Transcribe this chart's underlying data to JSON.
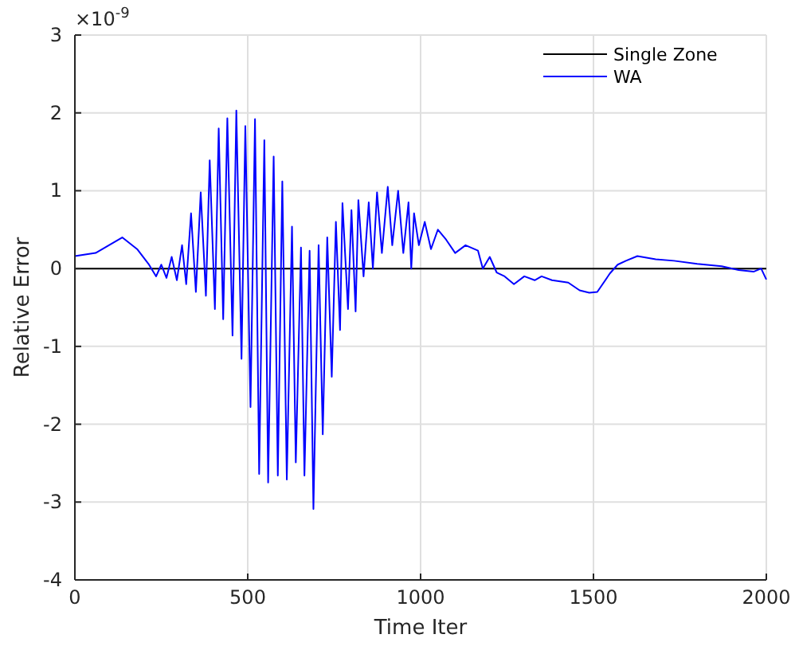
{
  "chart_data": {
    "type": "line",
    "xlabel": "Time Iter",
    "ylabel": "Relative Error",
    "annotations": [
      "×10$^{-9}$"
    ],
    "xlim": [
      0,
      2000
    ],
    "xticks": [
      0,
      500,
      1000,
      1500,
      2000
    ],
    "ylim": [
      -4,
      3
    ],
    "yticks": [
      -4,
      -3,
      -2,
      -1,
      0,
      1,
      2,
      3
    ],
    "grid": true,
    "legend": "top right",
    "line_style": "solid",
    "marker": "none",
    "series": [
      {
        "name": "Single Zone",
        "color": "#000000",
        "x": [
          0,
          2000
        ],
        "values": [
          0,
          0
        ]
      },
      {
        "name": "WA",
        "color": "#0000ff",
        "x": [
          0,
          60,
          137,
          180,
          213,
          235,
          250,
          265,
          280,
          295,
          310,
          322,
          336,
          350,
          364,
          379,
          390,
          405,
          416,
          429,
          441,
          456,
          467,
          482,
          493,
          508,
          521,
          533,
          548,
          559,
          575,
          587,
          600,
          613,
          628,
          639,
          654,
          664,
          679,
          690,
          705,
          717,
          730,
          743,
          755,
          767,
          774,
          790,
          800,
          812,
          820,
          835,
          850,
          862,
          874,
          888,
          905,
          918,
          935,
          950,
          965,
          973,
          981,
          995,
          1012,
          1030,
          1050,
          1074,
          1100,
          1130,
          1166,
          1180,
          1200,
          1220,
          1243,
          1270,
          1300,
          1330,
          1350,
          1380,
          1427,
          1460,
          1488,
          1511,
          1548,
          1570,
          1594,
          1627,
          1680,
          1733,
          1800,
          1871,
          1920,
          1963,
          1985,
          2000
        ],
        "values": [
          0.16,
          0.2,
          0.4,
          0.25,
          0.06,
          -0.1,
          0.05,
          -0.12,
          0.15,
          -0.15,
          0.3,
          -0.2,
          0.71,
          -0.3,
          0.98,
          -0.35,
          1.39,
          -0.52,
          1.8,
          -0.65,
          1.93,
          -0.86,
          2.03,
          -1.16,
          1.83,
          -1.78,
          1.92,
          -2.64,
          1.65,
          -2.75,
          1.44,
          -2.66,
          1.12,
          -2.71,
          0.54,
          -2.49,
          0.27,
          -2.66,
          0.23,
          -3.09,
          0.3,
          -2.13,
          0.4,
          -1.39,
          0.6,
          -0.79,
          0.84,
          -0.52,
          0.75,
          -0.55,
          0.88,
          -0.1,
          0.85,
          0,
          0.98,
          0.2,
          1.05,
          0.3,
          1,
          0.2,
          0.85,
          0,
          0.71,
          0.3,
          0.6,
          0.25,
          0.5,
          0.37,
          0.2,
          0.3,
          0.23,
          0,
          0.15,
          -0.05,
          -0.1,
          -0.2,
          -0.1,
          -0.15,
          -0.1,
          -0.15,
          -0.18,
          -0.28,
          -0.31,
          -0.3,
          -0.06,
          0.05,
          0.1,
          0.16,
          0.12,
          0.1,
          0.06,
          0.03,
          -0.02,
          -0.04,
          0,
          -0.14
        ]
      }
    ]
  }
}
